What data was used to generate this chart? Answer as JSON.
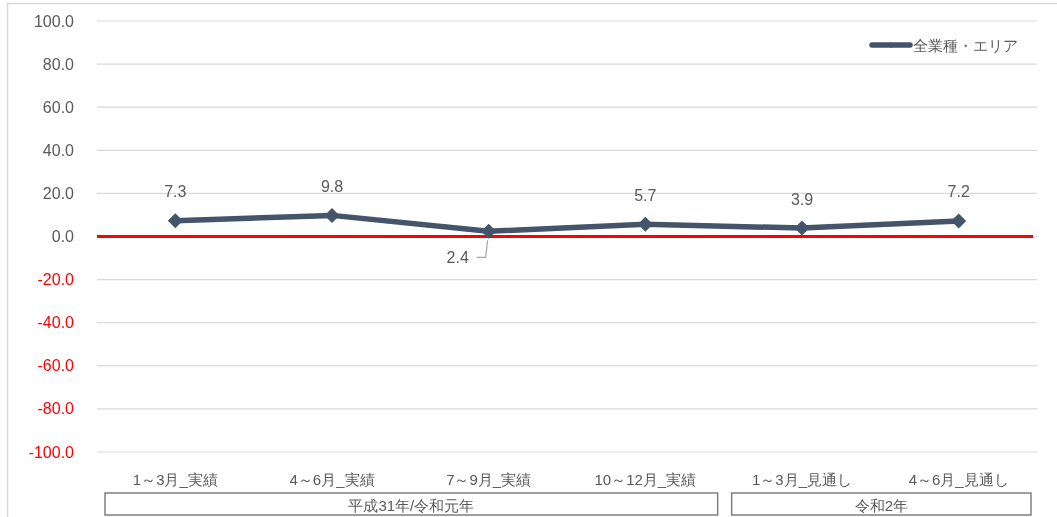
{
  "chart_data": {
    "type": "line",
    "categories": [
      "1～3月_実績",
      "4～6月_実績",
      "7～9月_実績",
      "10～12月_実績",
      "1～3月_見通し",
      "4～6月_見通し"
    ],
    "series": [
      {
        "name": "全業種・エリア",
        "color": "#44546a",
        "values": [
          7.3,
          9.8,
          2.4,
          5.7,
          3.9,
          7.2
        ]
      }
    ],
    "ylim": [
      -100,
      100
    ],
    "yticks": [
      {
        "value": -100,
        "label": "-100.0"
      },
      {
        "value": -80,
        "label": "-80.0"
      },
      {
        "value": -60,
        "label": "-60.0"
      },
      {
        "value": -40,
        "label": "-40.0"
      },
      {
        "value": -20,
        "label": "-20.0"
      },
      {
        "value": 0,
        "label": "0.0"
      },
      {
        "value": 20,
        "label": "20.0"
      },
      {
        "value": 40,
        "label": "40.0"
      },
      {
        "value": 60,
        "label": "60.0"
      },
      {
        "value": 80,
        "label": "80.0"
      },
      {
        "value": 100,
        "label": "100.0"
      }
    ],
    "ref_lines": [
      {
        "axis": "y",
        "value": 0,
        "color": "#ff0000"
      }
    ],
    "annotations": [
      "平成31年/令和元年",
      "令和2年"
    ],
    "grid": "y",
    "legend": "top right",
    "marker": "diamond",
    "line_style": "solid",
    "data_labels": true
  }
}
